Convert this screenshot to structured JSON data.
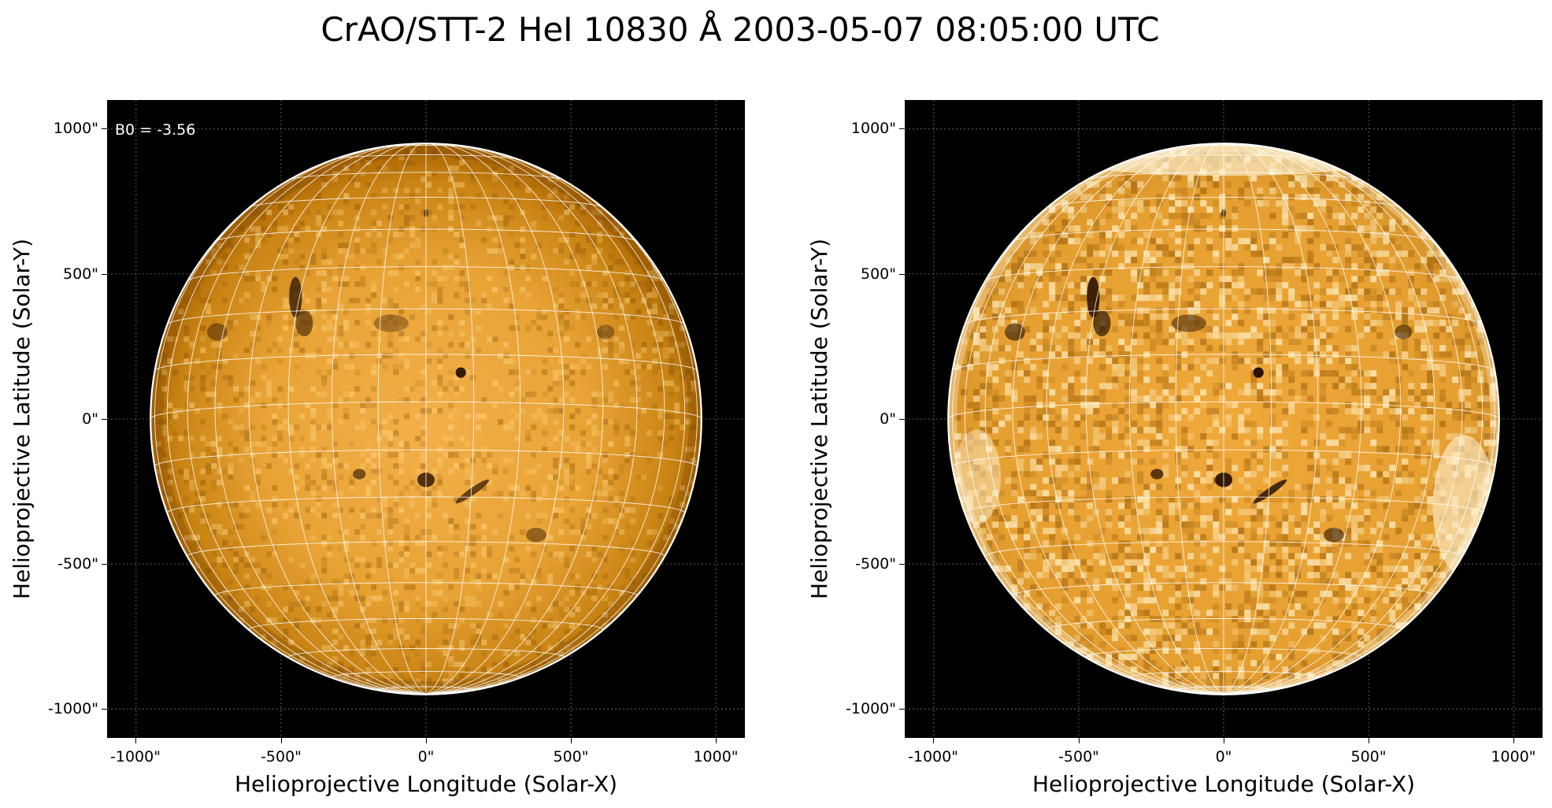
{
  "figure": {
    "title": "CrAO/STT-2 HeI 10830 Å 2003-05-07 08:05:00 UTC"
  },
  "panels": [
    {
      "xlabel": "Helioprojective Longitude (Solar-X)",
      "ylabel": "Helioprojective Latitude (Solar-Y)",
      "annotation": "B0 = -3.56",
      "display": "standard"
    },
    {
      "xlabel": "Helioprojective Longitude (Solar-X)",
      "ylabel": "Helioprojective Latitude (Solar-Y)",
      "annotation": "",
      "display": "contrast-enhanced"
    }
  ],
  "axes": {
    "xlim": [
      -1100,
      1100
    ],
    "ylim": [
      -1100,
      1100
    ],
    "xticks": [
      "-1000\"",
      "-500\"",
      "0\"",
      "500\"",
      "1000\""
    ],
    "yticks": [
      "1000\"",
      "500\"",
      "0\"",
      "-500\"",
      "-1000\""
    ],
    "tick_values": [
      -1000,
      -500,
      0,
      500,
      1000
    ],
    "grid": true
  },
  "disk": {
    "radius_arcsec": 950,
    "colors": {
      "background": "#000000",
      "disk_center": "#f3b04a",
      "disk_edge": "#b06a05",
      "grid": "#ffffff",
      "limb": "#ffffff"
    }
  }
}
